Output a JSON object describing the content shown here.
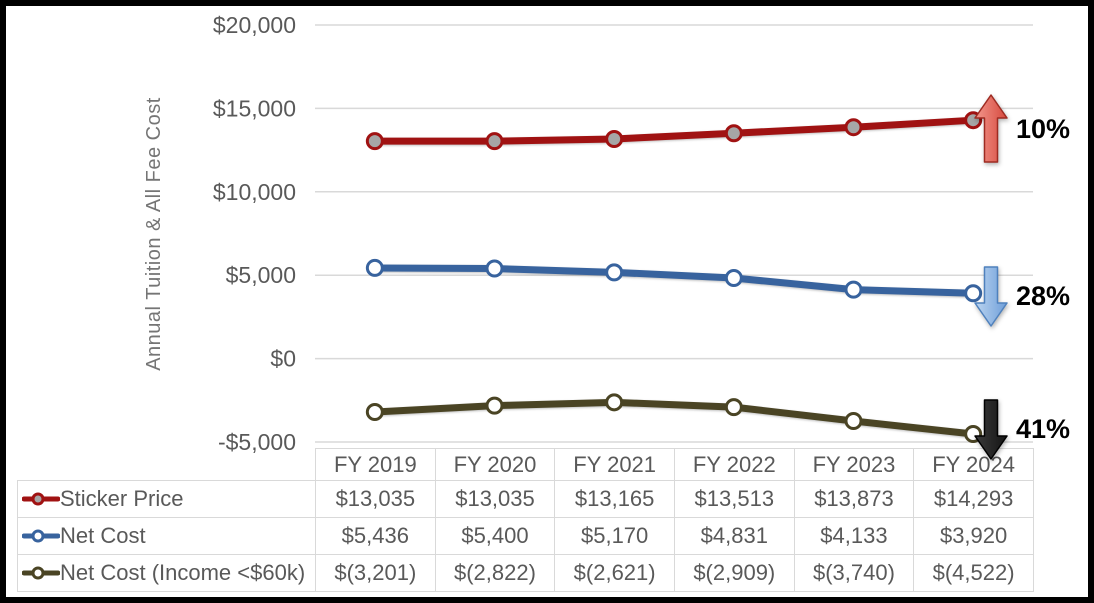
{
  "chart_data": {
    "type": "line",
    "title": "",
    "xlabel": "",
    "ylabel": "Annual Tuition & All Fee Cost",
    "categories": [
      "FY 2019",
      "FY 2020",
      "FY 2021",
      "FY 2022",
      "FY 2023",
      "FY 2024"
    ],
    "series": [
      {
        "name": "Sticker Price",
        "values": [
          13035,
          13035,
          13165,
          13513,
          13873,
          14293
        ],
        "display": [
          "$13,035",
          "$13,035",
          "$13,165",
          "$13,513",
          "$13,873",
          "$14,293"
        ],
        "color": "#a01212",
        "marker_fill": "#a6a6a6"
      },
      {
        "name": "Net Cost",
        "values": [
          5436,
          5400,
          5170,
          4831,
          4133,
          3920
        ],
        "display": [
          "$5,436",
          "$5,400",
          "$5,170",
          "$4,831",
          "$4,133",
          "$3,920"
        ],
        "color": "#38639e",
        "marker_fill": "#ffffff"
      },
      {
        "name": "Net Cost (Income <$60k)",
        "values": [
          -3201,
          -2822,
          -2621,
          -2909,
          -3740,
          -4522
        ],
        "display": [
          "$(3,201)",
          "$(2,822)",
          "$(2,621)",
          "$(2,909)",
          "$(3,740)",
          "$(4,522)"
        ],
        "color": "#4a4424",
        "marker_fill": "#ffffff"
      }
    ],
    "ylim": [
      -5000,
      20000
    ],
    "ytick_values": [
      20000,
      15000,
      10000,
      5000,
      0,
      -5000
    ],
    "ytick_labels": [
      "$20,000",
      "$15,000",
      "$10,000",
      "$5,000",
      "$0",
      "-$5,000"
    ],
    "grid": true,
    "legend_position": "table-left-column"
  },
  "annotations": [
    {
      "label": "10%",
      "direction": "up",
      "fill_light": "#f2978c",
      "fill_dark": "#d6493e",
      "stroke": "#9e2b22"
    },
    {
      "label": "28%",
      "direction": "down",
      "fill_light": "#bcd5f0",
      "fill_dark": "#6e9ed9",
      "stroke": "#4f81bd"
    },
    {
      "label": "41%",
      "direction": "down",
      "fill_light": "#3a3a3a",
      "fill_dark": "#141414",
      "stroke": "#000000"
    }
  ],
  "colors": {
    "frame_border": "#000000",
    "gridline": "#d9d9d9",
    "axis_text": "#595959",
    "table_border": "#d9d9d9",
    "table_text": "#595959",
    "yaxis_title_text": "#757575"
  }
}
